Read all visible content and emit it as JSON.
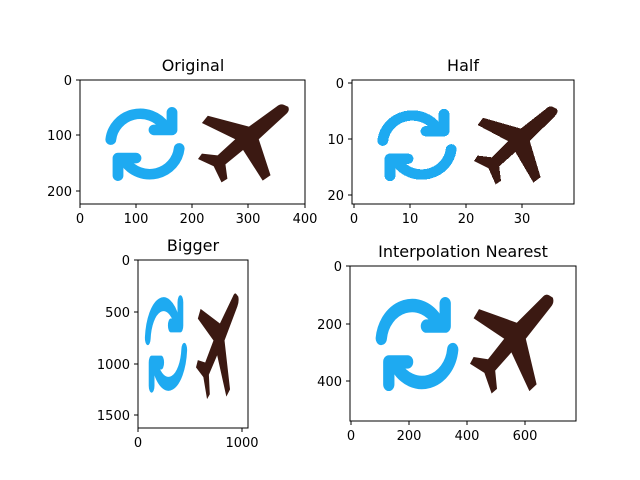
{
  "figure": {
    "background": "#ffffff",
    "colors": {
      "sync_icon": "#1eaaf1",
      "plane_icon": "#3b1912",
      "axis": "#000000"
    }
  },
  "panels": [
    {
      "title": "Original",
      "xticks": [
        "0",
        "100",
        "200",
        "300",
        "400"
      ],
      "yticks": [
        "0",
        "100",
        "200"
      ]
    },
    {
      "title": "Half",
      "xticks": [
        "0",
        "10",
        "20",
        "30"
      ],
      "yticks": [
        "0",
        "10",
        "20"
      ]
    },
    {
      "title": "Bigger",
      "xticks": [
        "0",
        "1000"
      ],
      "yticks": [
        "0",
        "500",
        "1000",
        "1500"
      ]
    },
    {
      "title": "Interpolation Nearest",
      "xticks": [
        "0",
        "200",
        "400",
        "600"
      ],
      "yticks": [
        "0",
        "200",
        "400"
      ]
    }
  ],
  "icons": [
    "sync-icon",
    "airplane-icon"
  ],
  "chart_data": [
    {
      "type": "image",
      "title": "Original",
      "xlim": [
        0,
        400
      ],
      "ylim": [
        220,
        0
      ],
      "xticks": [
        0,
        100,
        200,
        300,
        400
      ],
      "yticks": [
        0,
        100,
        200
      ],
      "grid": false
    },
    {
      "type": "image",
      "title": "Half",
      "xlim": [
        0,
        38
      ],
      "ylim": [
        21,
        0
      ],
      "xticks": [
        0,
        10,
        20,
        30
      ],
      "yticks": [
        0,
        10,
        20
      ],
      "grid": false
    },
    {
      "type": "image",
      "title": "Bigger",
      "xlim": [
        0,
        1050
      ],
      "ylim": [
        1600,
        0
      ],
      "xticks": [
        0,
        1000
      ],
      "yticks": [
        0,
        500,
        1000,
        1500
      ],
      "grid": false
    },
    {
      "type": "image",
      "title": "Interpolation Nearest",
      "xlim": [
        0,
        780
      ],
      "ylim": [
        540,
        0
      ],
      "xticks": [
        0,
        200,
        400,
        600
      ],
      "yticks": [
        0,
        200,
        400
      ],
      "grid": false
    }
  ]
}
